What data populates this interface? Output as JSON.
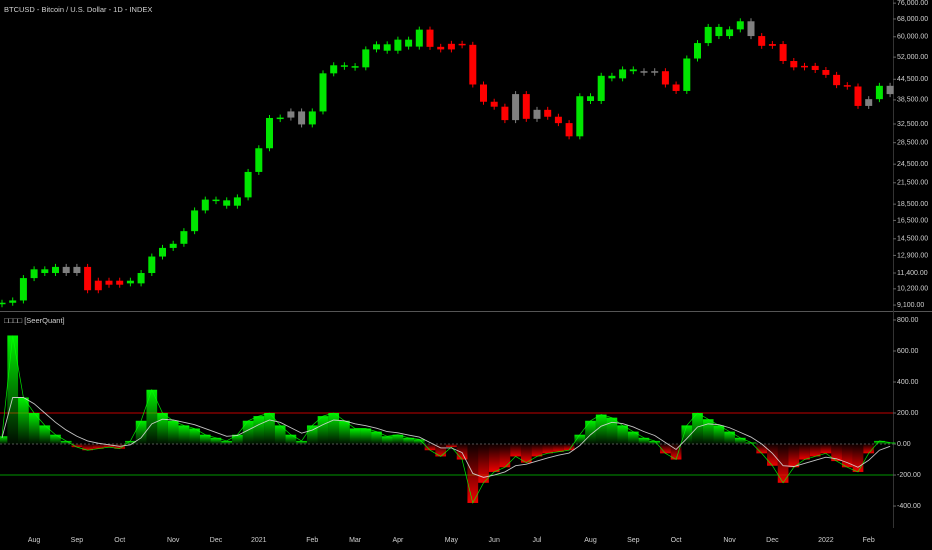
{
  "chart_data": [
    {
      "type": "candlestick",
      "title": "BTCUSD - Bitcoin / U.S. Dollar - 1D - INDEX",
      "log_scale": true,
      "ylim": [
        8790,
        77700
      ],
      "yticks": [
        {
          "value": 76000,
          "label": "76,000.00"
        },
        {
          "value": 68000,
          "label": "68,000.00"
        },
        {
          "value": 60000,
          "label": "60,000.00"
        },
        {
          "value": 52000,
          "label": "52,000.00"
        },
        {
          "value": 44500,
          "label": "44,500.00"
        },
        {
          "value": 38500,
          "label": "38,500.00"
        },
        {
          "value": 32500,
          "label": "32,500.00"
        },
        {
          "value": 28500,
          "label": "28,500.00"
        },
        {
          "value": 24500,
          "label": "24,500.00"
        },
        {
          "value": 21500,
          "label": "21,500.00"
        },
        {
          "value": 18500,
          "label": "18,500.00"
        },
        {
          "value": 16500,
          "label": "16,500.00"
        },
        {
          "value": 14500,
          "label": "14,500.00"
        },
        {
          "value": 12900,
          "label": "12,900.00"
        },
        {
          "value": 11400,
          "label": "11,400.00"
        },
        {
          "value": 10200,
          "label": "10,200.00"
        },
        {
          "value": 9100,
          "label": "9,100.00"
        }
      ],
      "values": [
        9250,
        9400,
        11000,
        11700,
        11400,
        11900,
        11400,
        11900,
        10100,
        10800,
        10500,
        10800,
        10600,
        11400,
        12800,
        13600,
        14000,
        15300,
        17700,
        19100,
        19000,
        18300,
        19400,
        23200,
        27400,
        33900,
        34000,
        35500,
        32400,
        35500,
        46400,
        49100,
        48800,
        48400,
        54900,
        56900,
        54400,
        58800,
        56000,
        63100,
        55900,
        54900,
        57100,
        56700,
        42900,
        38000,
        36700,
        33400,
        40100,
        33700,
        35900,
        34200,
        32700,
        29800,
        39500,
        38200,
        45600,
        44800,
        47700,
        47100,
        46800,
        47100,
        42900,
        41000,
        51500,
        57400,
        64300,
        60300,
        63200,
        66900,
        60300,
        56300,
        57000,
        50600,
        48400,
        48900,
        47500,
        45900,
        42700,
        42300,
        36900,
        38700,
        42500,
        40100
      ],
      "colors": [
        "#00e600",
        "#00e600",
        "#00e600",
        "#00e600",
        "#00e600",
        "#00e600",
        "#808080",
        "#808080",
        "#ff0000",
        "#ff0000",
        "#ff0000",
        "#ff0000",
        "#00e600",
        "#00e600",
        "#00e600",
        "#00e600",
        "#00e600",
        "#00e600",
        "#00e600",
        "#00e600",
        "#00e600",
        "#00e600",
        "#00e600",
        "#00e600",
        "#00e600",
        "#00e600",
        "#00e600",
        "#808080",
        "#808080",
        "#00e600",
        "#00e600",
        "#00e600",
        "#00e600",
        "#00e600",
        "#00e600",
        "#00e600",
        "#00e600",
        "#00e600",
        "#00e600",
        "#00e600",
        "#ff0000",
        "#ff0000",
        "#ff0000",
        "#ff0000",
        "#ff0000",
        "#ff0000",
        "#ff0000",
        "#ff0000",
        "#808080",
        "#ff0000",
        "#808080",
        "#ff0000",
        "#ff0000",
        "#ff0000",
        "#00e600",
        "#00e600",
        "#00e600",
        "#00e600",
        "#00e600",
        "#00e600",
        "#808080",
        "#808080",
        "#ff0000",
        "#ff0000",
        "#00e600",
        "#00e600",
        "#00e600",
        "#00e600",
        "#00e600",
        "#00e600",
        "#808080",
        "#ff0000",
        "#ff0000",
        "#ff0000",
        "#ff0000",
        "#ff0000",
        "#ff0000",
        "#ff0000",
        "#ff0000",
        "#ff0000",
        "#ff0000",
        "#808080",
        "#00e600",
        "#808080"
      ]
    },
    {
      "type": "oscillator",
      "title": "□□□□ [SeerQuant]",
      "ylim": [
        -490,
        845
      ],
      "yticks": [
        {
          "value": 800,
          "label": "800.00"
        },
        {
          "value": 600,
          "label": "600.00"
        },
        {
          "value": 400,
          "label": "400.00"
        },
        {
          "value": 200,
          "label": "200.00"
        },
        {
          "value": 0,
          "label": "0.00"
        },
        {
          "value": -200,
          "label": "-200.00"
        },
        {
          "value": -400,
          "label": "-400.00"
        }
      ],
      "categories": [
        null,
        null,
        null,
        "Aug",
        null,
        null,
        null,
        "Sep",
        null,
        null,
        null,
        "Oct",
        null,
        null,
        null,
        null,
        "Nov",
        null,
        null,
        null,
        "Dec",
        null,
        null,
        null,
        "2021",
        null,
        null,
        null,
        null,
        "Feb",
        null,
        null,
        null,
        "Mar",
        null,
        null,
        null,
        "Apr",
        null,
        null,
        null,
        null,
        "May",
        null,
        null,
        null,
        "Jun",
        null,
        null,
        null,
        "Jul",
        null,
        null,
        null,
        null,
        "Aug",
        null,
        null,
        null,
        "Sep",
        null,
        null,
        null,
        "Oct",
        null,
        null,
        null,
        null,
        "Nov",
        null,
        null,
        null,
        "Dec",
        null,
        null,
        null,
        null,
        "2022",
        null,
        null,
        null,
        "Feb",
        null,
        null
      ],
      "series": [
        {
          "color": "#00ff00",
          "negative_color": "#ff0000",
          "values": [
            50,
            700,
            300,
            200,
            120,
            60,
            20,
            -20,
            -40,
            -30,
            -20,
            -30,
            20,
            150,
            350,
            200,
            150,
            120,
            100,
            60,
            40,
            20,
            60,
            150,
            180,
            200,
            120,
            60,
            20,
            120,
            180,
            200,
            150,
            100,
            100,
            80,
            50,
            60,
            40,
            30,
            -40,
            -80,
            -20,
            -100,
            -380,
            -250,
            -180,
            -150,
            -80,
            -120,
            -80,
            -60,
            -50,
            -40,
            60,
            150,
            190,
            170,
            120,
            80,
            40,
            20,
            -60,
            -100,
            120,
            200,
            160,
            120,
            80,
            40,
            10,
            -60,
            -140,
            -250,
            -150,
            -100,
            -80,
            -60,
            -110,
            -150,
            -180,
            -60,
            20,
            10
          ]
        },
        {
          "color": "#d8d8d8",
          "values": [
            40,
            300,
            300,
            260,
            200,
            140,
            90,
            50,
            20,
            5,
            -5,
            -15,
            -5,
            40,
            130,
            160,
            155,
            140,
            125,
            100,
            75,
            50,
            55,
            90,
            125,
            155,
            140,
            105,
            70,
            90,
            125,
            155,
            150,
            130,
            118,
            102,
            80,
            72,
            58,
            45,
            10,
            -25,
            -25,
            -55,
            -190,
            -215,
            -200,
            -180,
            -140,
            -130,
            -110,
            -90,
            -72,
            -58,
            -10,
            60,
            115,
            140,
            132,
            110,
            80,
            55,
            10,
            -35,
            35,
            110,
            130,
            125,
            105,
            75,
            45,
            0,
            -60,
            -140,
            -145,
            -125,
            -105,
            -85,
            -95,
            -120,
            -150,
            -105,
            -40,
            -15
          ]
        }
      ],
      "hlines": [
        {
          "value": 200,
          "color": "#ff0000"
        },
        {
          "value": -200,
          "color": "#00c800"
        }
      ]
    }
  ]
}
